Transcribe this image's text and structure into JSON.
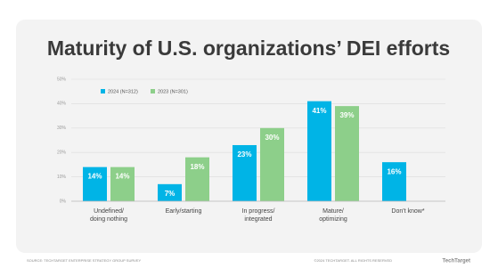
{
  "chart_data": {
    "type": "bar",
    "title": "Maturity of U.S. organizations’ DEI efforts",
    "categories": [
      "Undefined/\ndoing nothing",
      "Early/starting",
      "In progress/\nintegrated",
      "Mature/\noptimizing",
      "Don't know*"
    ],
    "series": [
      {
        "name": "2024 (N=312)",
        "color": "#00b4e6",
        "values": [
          14,
          7,
          23,
          41,
          16
        ],
        "value_labels": [
          "14%",
          "7%",
          "23%",
          "41%",
          "16%"
        ]
      },
      {
        "name": "2023 (N=301)",
        "color": "#8dcf8a",
        "values": [
          14,
          18,
          30,
          39,
          null
        ],
        "value_labels": [
          "14%",
          "18%",
          "30%",
          "39%",
          null
        ]
      }
    ],
    "ylim": [
      0,
      50
    ],
    "yticks": [
      {
        "value": 0,
        "label": "0%"
      },
      {
        "value": 10,
        "label": "10%"
      },
      {
        "value": 20,
        "label": "20%"
      },
      {
        "value": 30,
        "label": "30%"
      },
      {
        "value": 40,
        "label": "40%"
      },
      {
        "value": 50,
        "label": "50%"
      }
    ],
    "grid": true,
    "source": "SOURCE: TECHTARGET ENTERPRISE STRATEGY GROUP SURVEY",
    "copyright": "©2024 TECHTARGET. ALL RIGHTS RESERVED",
    "logo": "TechTarget"
  }
}
